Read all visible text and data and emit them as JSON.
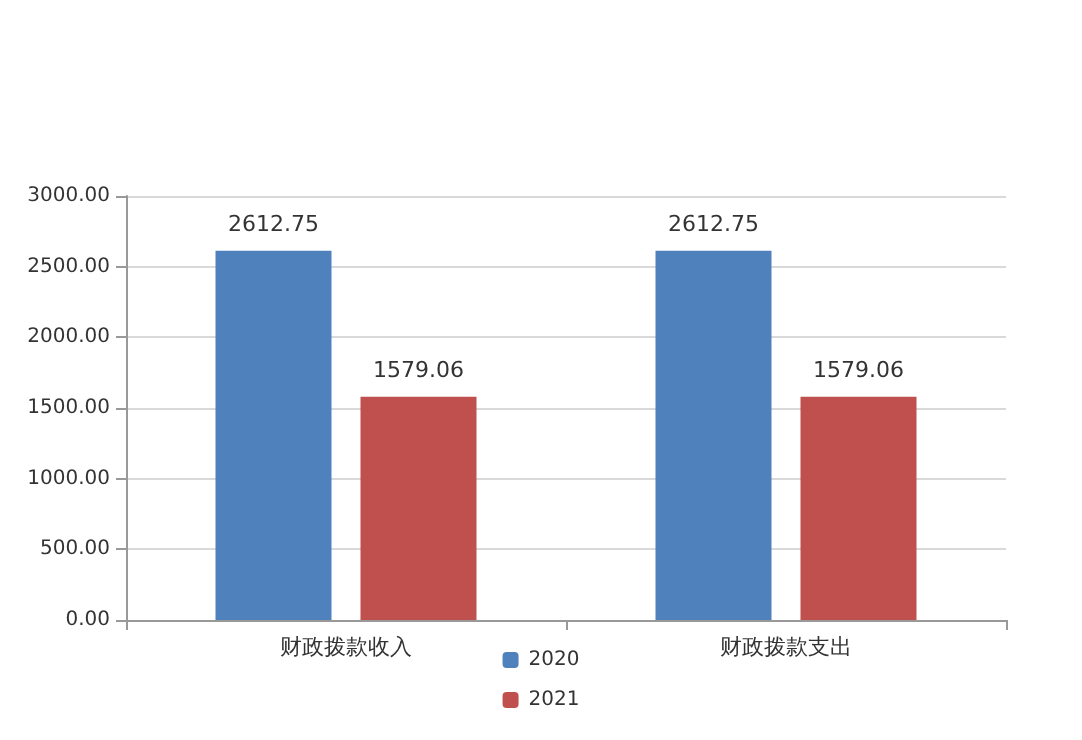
{
  "chart_data": {
    "type": "bar",
    "categories": [
      "财政拨款收入",
      "财政拨款支出"
    ],
    "series": [
      {
        "name": "2020",
        "color": "#4f81bd",
        "values": [
          2612.75,
          2612.75
        ]
      },
      {
        "name": "2021",
        "color": "#c0504d",
        "values": [
          1579.06,
          1579.06
        ]
      }
    ],
    "ylim": [
      0,
      3000
    ],
    "yticks": [
      {
        "value": 0,
        "label": "0.00"
      },
      {
        "value": 500,
        "label": "500.00"
      },
      {
        "value": 1000,
        "label": "1000.00"
      },
      {
        "value": 1500,
        "label": "1500.00"
      },
      {
        "value": 2000,
        "label": "2000.00"
      },
      {
        "value": 2500,
        "label": "2500.00"
      },
      {
        "value": 3000,
        "label": "3000.00"
      }
    ],
    "grid": "y",
    "legend": "bottom",
    "data_labels": true
  }
}
